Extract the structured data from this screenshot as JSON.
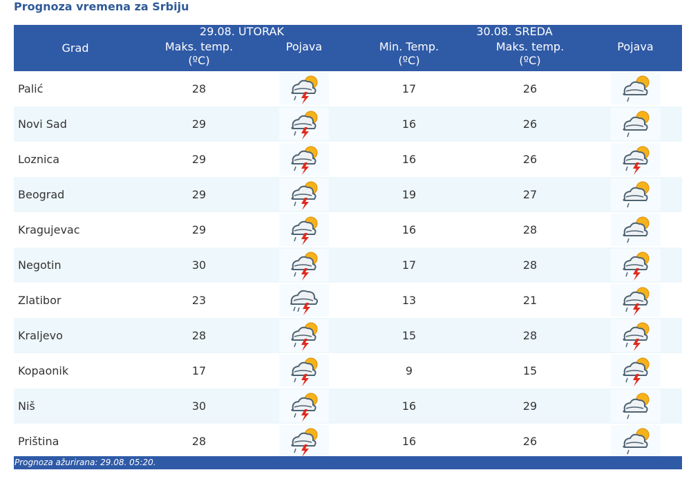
{
  "page_title": "Prognoza vremena za Srbiju",
  "header": {
    "grad": "Grad",
    "day1": "29.08. UTORAK",
    "day2": "30.08. SREDA",
    "d1_max_line1": "Maks. temp.",
    "d1_max_line2": "(ºC)",
    "d1_pojava": "Pojava",
    "d2_min_line1": "Min. Temp.",
    "d2_min_line2": "(ºC)",
    "d2_max_line1": "Maks. temp.",
    "d2_max_line2": "(ºC)",
    "d2_pojava": "Pojava"
  },
  "rows": [
    {
      "city": "Palić",
      "d1_max": "28",
      "d1_icon": "storm-sun-icon",
      "d2_min": "17",
      "d2_max": "26",
      "d2_icon": "rain-sun-icon"
    },
    {
      "city": "Novi Sad",
      "d1_max": "29",
      "d1_icon": "storm-sun-icon",
      "d2_min": "16",
      "d2_max": "26",
      "d2_icon": "rain-sun-icon"
    },
    {
      "city": "Loznica",
      "d1_max": "29",
      "d1_icon": "storm-sun-icon",
      "d2_min": "16",
      "d2_max": "26",
      "d2_icon": "storm-sun-icon"
    },
    {
      "city": "Beograd",
      "d1_max": "29",
      "d1_icon": "storm-sun-icon",
      "d2_min": "19",
      "d2_max": "27",
      "d2_icon": "rain-sun-icon"
    },
    {
      "city": "Kragujevac",
      "d1_max": "29",
      "d1_icon": "storm-sun-icon",
      "d2_min": "16",
      "d2_max": "28",
      "d2_icon": "rain-sun-icon"
    },
    {
      "city": "Negotin",
      "d1_max": "30",
      "d1_icon": "storm-sun-icon",
      "d2_min": "17",
      "d2_max": "28",
      "d2_icon": "storm-sun-icon"
    },
    {
      "city": "Zlatibor",
      "d1_max": "23",
      "d1_icon": "storm-icon",
      "d2_min": "13",
      "d2_max": "21",
      "d2_icon": "storm-sun-icon"
    },
    {
      "city": "Kraljevo",
      "d1_max": "28",
      "d1_icon": "storm-sun-icon",
      "d2_min": "15",
      "d2_max": "28",
      "d2_icon": "storm-sun-icon"
    },
    {
      "city": "Kopaonik",
      "d1_max": "17",
      "d1_icon": "storm-sun-icon",
      "d2_min": "9",
      "d2_max": "15",
      "d2_icon": "storm-sun-icon"
    },
    {
      "city": "Niš",
      "d1_max": "30",
      "d1_icon": "storm-sun-icon",
      "d2_min": "16",
      "d2_max": "29",
      "d2_icon": "rain-sun-icon"
    },
    {
      "city": "Priština",
      "d1_max": "28",
      "d1_icon": "storm-sun-icon",
      "d2_min": "16",
      "d2_max": "26",
      "d2_icon": "rain-sun-icon"
    }
  ],
  "footer": "Prognoza ažurirana:  29.08. 05:20."
}
